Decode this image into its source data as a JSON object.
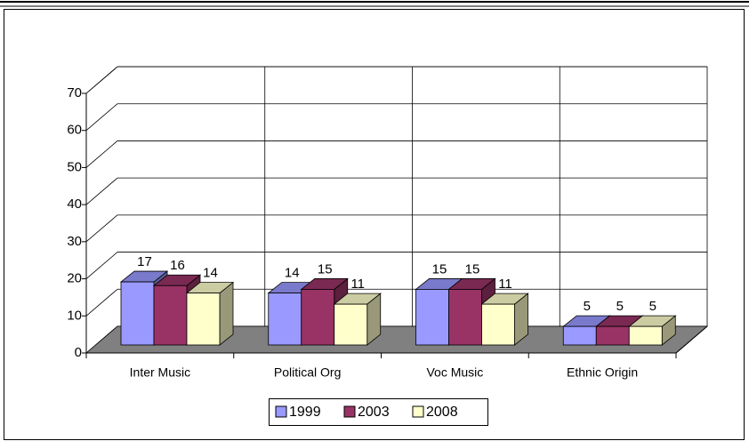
{
  "chart_data": {
    "type": "bar3d",
    "categories": [
      "Inter Music",
      "Political Org",
      "Voc Music",
      "Ethnic Origin"
    ],
    "series": [
      {
        "name": "1999",
        "color": "#9999ff",
        "values": [
          17,
          14,
          15,
          5
        ]
      },
      {
        "name": "2003",
        "color": "#993366",
        "values": [
          16,
          15,
          15,
          5
        ]
      },
      {
        "name": "2008",
        "color": "#ffffcc",
        "values": [
          14,
          11,
          11,
          5
        ]
      }
    ],
    "ylim": [
      0,
      70
    ],
    "yticks": [
      0,
      10,
      20,
      30,
      40,
      50,
      60,
      70
    ],
    "grid": true,
    "legend": "bottom"
  }
}
